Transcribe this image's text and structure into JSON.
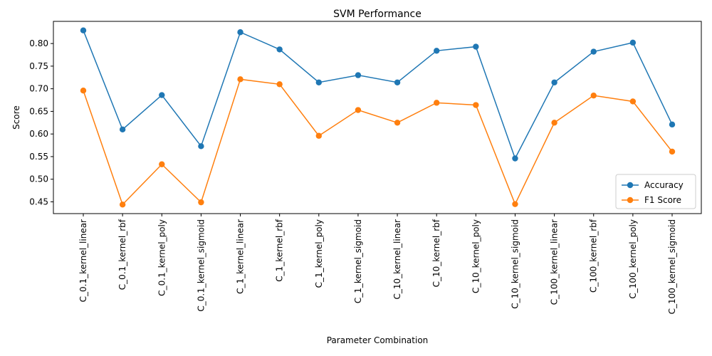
{
  "chart_data": {
    "type": "line",
    "title": "SVM Performance",
    "xlabel": "Parameter Combination",
    "ylabel": "Score",
    "categories": [
      "C_0.1_kernel_linear",
      "C_0.1_kernel_rbf",
      "C_0.1_kernel_poly",
      "C_0.1_kernel_sigmoid",
      "C_1_kernel_linear",
      "C_1_kernel_rbf",
      "C_1_kernel_poly",
      "C_1_kernel_sigmoid",
      "C_10_kernel_linear",
      "C_10_kernel_rbf",
      "C_10_kernel_poly",
      "C_10_kernel_sigmoid",
      "C_100_kernel_linear",
      "C_100_kernel_rbf",
      "C_100_kernel_poly",
      "C_100_kernel_sigmoid"
    ],
    "series": [
      {
        "name": "Accuracy",
        "color": "#1f77b4",
        "values": [
          0.829,
          0.61,
          0.686,
          0.573,
          0.825,
          0.787,
          0.714,
          0.73,
          0.714,
          0.784,
          0.793,
          0.546,
          0.714,
          0.782,
          0.802,
          0.621
        ]
      },
      {
        "name": "F1 Score",
        "color": "#ff7f0e",
        "values": [
          0.696,
          0.444,
          0.533,
          0.449,
          0.721,
          0.71,
          0.596,
          0.653,
          0.625,
          0.669,
          0.664,
          0.445,
          0.625,
          0.685,
          0.672,
          0.561
        ]
      }
    ],
    "yticks": [
      "0.45",
      "0.50",
      "0.55",
      "0.60",
      "0.65",
      "0.70",
      "0.75",
      "0.80"
    ],
    "ylim": [
      0.424,
      0.849
    ],
    "grid": false,
    "legend_position": "lower right"
  }
}
